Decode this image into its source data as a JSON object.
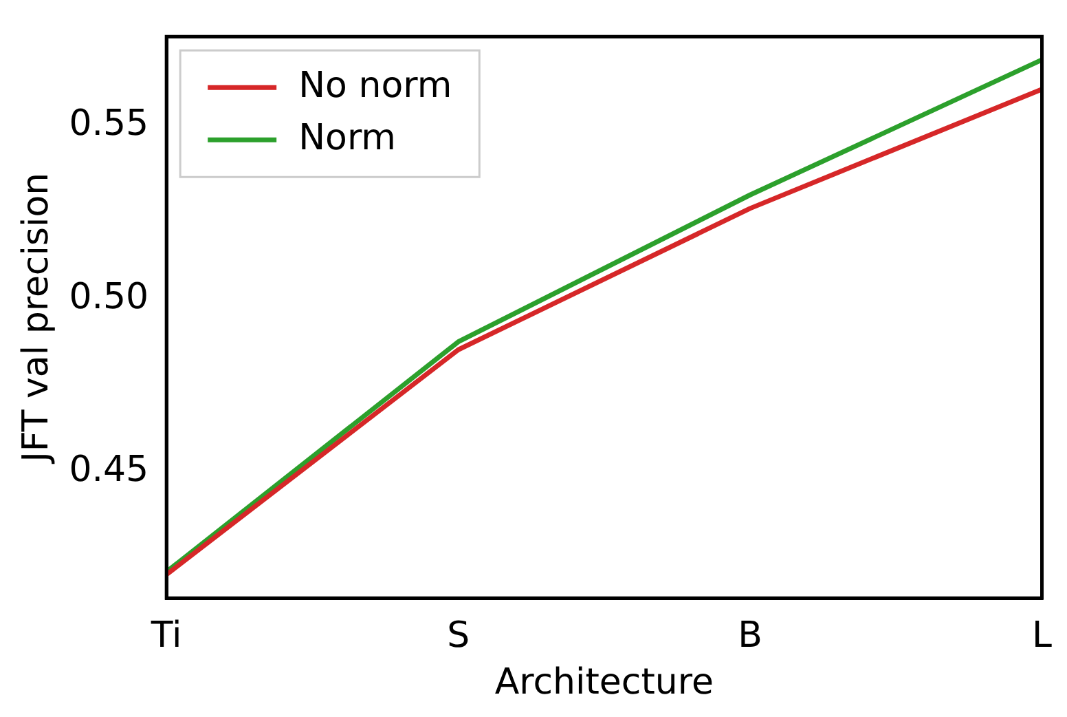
{
  "chart_data": {
    "type": "line",
    "xlabel": "Architecture",
    "ylabel": "JFT val precision",
    "categories": [
      "Ti",
      "S",
      "B",
      "L"
    ],
    "series": [
      {
        "name": "No norm",
        "color": "#d62728",
        "values": [
          0.4204,
          0.4853,
          0.5261,
          0.5605
        ]
      },
      {
        "name": "Norm",
        "color": "#2ca02c",
        "values": [
          0.4212,
          0.4876,
          0.53,
          0.569
        ]
      }
    ],
    "ylim": [
      0.4136,
      0.5757
    ],
    "yticks": [
      0.45,
      {
        "value": 0.5,
        "label": "0.50"
      },
      0.55
    ],
    "legend": "top left",
    "grid": false,
    "marker": "none",
    "line_style": "solid"
  }
}
